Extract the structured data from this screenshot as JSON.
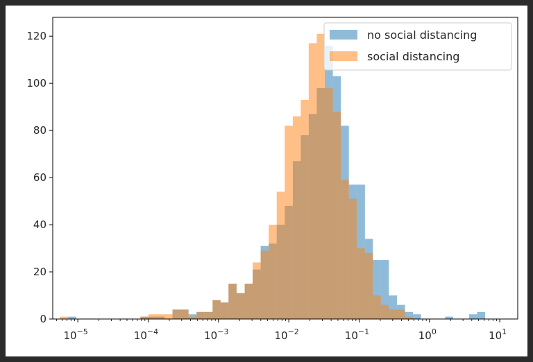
{
  "chart_data": {
    "type": "bar",
    "xscale": "log",
    "xlim": [
      4e-06,
      0.0007
    ],
    "ylim": [
      0,
      128
    ],
    "grid": false,
    "legend_position": "top-right",
    "y_ticks": [
      0,
      20,
      40,
      60,
      80,
      100,
      120
    ],
    "x_ticks": [
      {
        "value": 1e-05,
        "base": "10",
        "exp": "−5"
      },
      {
        "value": 0.0001,
        "base": "10",
        "exp": "−4"
      },
      {
        "value": 0.001,
        "base": "10",
        "exp": "−3"
      },
      {
        "value": 0.01,
        "base": "10",
        "exp": "−2"
      },
      {
        "value": 0.1,
        "base": "10",
        "exp": "−1"
      },
      {
        "value": 1,
        "base": "10",
        "exp": "0"
      },
      {
        "value": 10,
        "base": "10",
        "exp": "1"
      }
    ],
    "bin_edges": [
      5.6e-06,
      7.3e-06,
      9.5e-06,
      1.24e-05,
      1.61e-05,
      2.09e-05,
      2.72e-05,
      3.53e-05,
      4.59e-05,
      5.97e-05,
      7.77e-05,
      0.000101,
      0.000131,
      0.000171,
      0.000222,
      0.000289,
      0.000375,
      0.000488,
      0.000634,
      0.000825,
      0.00107,
      0.00139,
      0.00181,
      0.00236,
      0.00306,
      0.00398,
      0.00518,
      0.00673,
      0.00875,
      0.0114,
      0.0148,
      0.0192,
      0.025,
      0.0325,
      0.0423,
      0.055,
      0.0715,
      0.093,
      0.121,
      0.157,
      0.204,
      0.265,
      0.345,
      0.449,
      0.583,
      0.758,
      0.986,
      1.28,
      1.67,
      2.17,
      2.82,
      3.66,
      4.76,
      6.19
    ],
    "series": [
      {
        "name": "no social distancing",
        "color": "#1f77b4",
        "values": [
          0,
          1,
          0,
          0,
          0,
          0,
          0,
          0,
          0,
          0,
          1,
          1,
          1,
          0,
          4,
          4,
          2,
          3,
          3,
          8,
          7,
          15,
          11,
          15,
          21,
          31,
          32,
          40,
          48,
          67,
          78,
          87,
          98,
          116,
          103,
          82,
          57,
          57,
          34,
          25,
          25,
          10,
          6,
          3,
          2,
          0,
          0,
          0,
          1,
          0,
          0,
          2,
          3
        ]
      },
      {
        "name": "social distancing",
        "color": "#ff7f0e",
        "values": [
          1,
          0,
          0,
          0,
          0,
          0,
          0,
          0,
          0,
          0,
          1,
          2,
          2,
          2,
          4,
          4,
          1,
          3,
          3,
          8,
          7,
          15,
          11,
          15,
          24,
          29,
          40,
          54,
          82,
          86,
          93,
          117,
          121,
          98,
          88,
          59,
          51,
          30,
          28,
          10,
          6,
          4,
          4,
          1,
          0,
          0,
          0,
          0,
          0,
          0,
          0,
          0,
          0
        ]
      }
    ]
  }
}
